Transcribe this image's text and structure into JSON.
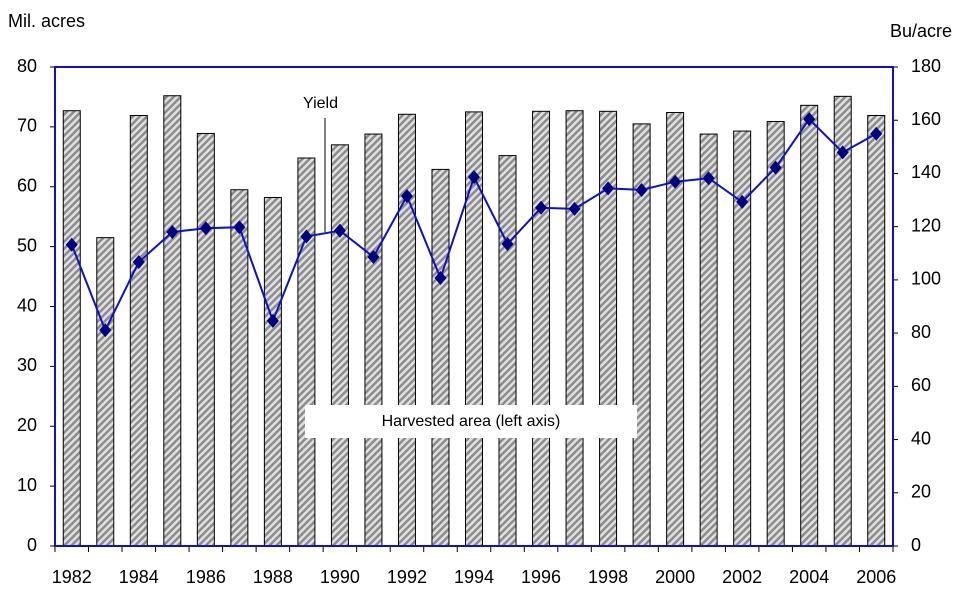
{
  "chart_data": {
    "type": "bar",
    "y_label": "Mil. acres",
    "y2_label": "Bu/acre",
    "categories": [
      "1982",
      null,
      "1984",
      null,
      "1986",
      null,
      "1988",
      null,
      "1990",
      null,
      "1992",
      null,
      "1994",
      null,
      "1996",
      null,
      "1998",
      null,
      "2000",
      null,
      "2002",
      null,
      "2004",
      null,
      "2006"
    ],
    "series": [
      {
        "name": "Harvested area (left axis)",
        "type": "bar",
        "color": "#8c8c8c",
        "values": [
          72.7,
          51.5,
          71.9,
          75.2,
          68.9,
          59.5,
          58.2,
          64.8,
          67.0,
          68.8,
          72.1,
          62.9,
          72.5,
          65.2,
          72.6,
          72.7,
          72.6,
          70.5,
          72.4,
          68.8,
          69.3,
          70.9,
          73.6,
          75.1,
          71.9
        ]
      },
      {
        "name": "Yield",
        "type": "line",
        "axis": "y2",
        "color": "#1010c8",
        "marker_color": "#000080",
        "values": [
          113.2,
          81.1,
          106.7,
          118.0,
          119.4,
          119.8,
          84.6,
          116.3,
          118.5,
          108.6,
          131.5,
          100.7,
          138.6,
          113.5,
          127.1,
          126.7,
          134.4,
          133.8,
          136.9,
          138.2,
          129.3,
          142.2,
          160.4,
          147.9,
          154.9
        ]
      }
    ],
    "ylim": [
      0,
      80
    ],
    "yticks": [
      0,
      10,
      20,
      30,
      40,
      50,
      60,
      70,
      80
    ],
    "y2lim": [
      0,
      180
    ],
    "y2ticks": [
      0,
      20,
      40,
      60,
      80,
      100,
      120,
      140,
      160,
      180
    ],
    "frame_color": "#1010c8"
  }
}
